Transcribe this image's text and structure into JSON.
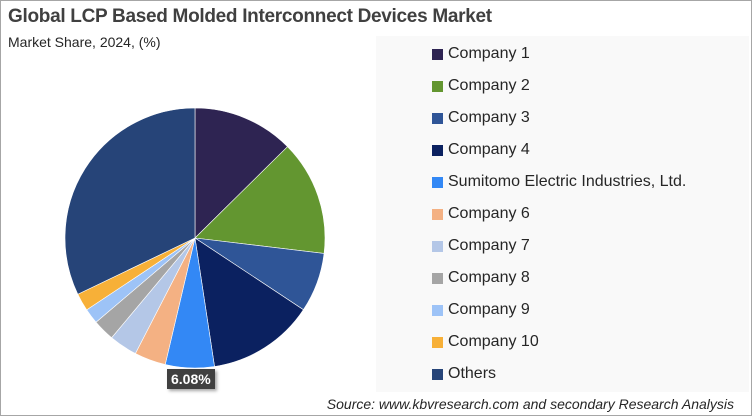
{
  "chart_data": {
    "type": "pie",
    "title": "Global LCP Based Molded Interconnect Devices Market",
    "subtitle": "Market Share, 2024, (%)",
    "categories": [
      "Company 1",
      "Company 2",
      "Company 3",
      "Company 4",
      "Sumitomo Electric Industries, Ltd.",
      "Company 6",
      "Company 7",
      "Company 8",
      "Company 9",
      "Company 10",
      "Others"
    ],
    "values": [
      12.6,
      14.3,
      7.4,
      13.3,
      6.08,
      3.9,
      3.5,
      2.7,
      1.9,
      2.2,
      32.12
    ],
    "colors": [
      "#2e2452",
      "#639630",
      "#2f5597",
      "#0b2160",
      "#3388f5",
      "#f4b183",
      "#b4c7e7",
      "#a5a5a5",
      "#9dc3f7",
      "#f7b038",
      "#264478"
    ],
    "data_labels": {
      "4": "6.08%"
    },
    "legend_position": "right"
  },
  "source": "Source: www.kbvresearch.com and secondary Research Analysis"
}
